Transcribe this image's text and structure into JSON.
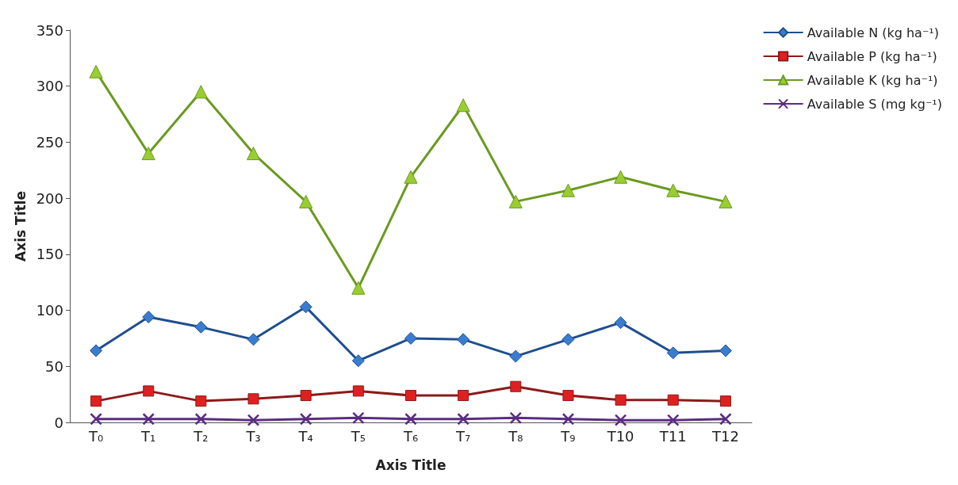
{
  "chart_data": {
    "type": "line",
    "xlabel": "Axis Title",
    "ylabel": "Axis Title",
    "categories": [
      "T₀",
      "T₁",
      "T₂",
      "T₃",
      "T₄",
      "T₅",
      "T₆",
      "T₇",
      "T₈",
      "T₉",
      "T10",
      "T11",
      "T12"
    ],
    "series": [
      {
        "name": "Available N (kg ha⁻¹)",
        "color": "#1f4e8c",
        "marker": "diamond",
        "values": [
          64,
          94,
          85,
          74,
          103,
          55,
          75,
          74,
          59,
          74,
          89,
          62,
          64
        ]
      },
      {
        "name": "Available P (kg ha⁻¹)",
        "color": "#8b1a1a",
        "marker": "square",
        "values": [
          19,
          28,
          19,
          21,
          24,
          28,
          24,
          24,
          32,
          24,
          20,
          20,
          19
        ]
      },
      {
        "name": "Available K (kg ha⁻¹)",
        "color": "#6a9a1f",
        "marker": "triangle",
        "values": [
          313,
          240,
          295,
          240,
          197,
          120,
          219,
          283,
          197,
          207,
          219,
          207,
          197
        ]
      },
      {
        "name": "Available S (mg kg⁻¹)",
        "color": "#5b2c82",
        "marker": "cross",
        "values": [
          3,
          3,
          3,
          2,
          3,
          4,
          3,
          3,
          4,
          3,
          2,
          2,
          3
        ]
      }
    ],
    "ylim": [
      0,
      350
    ],
    "yticks": [
      0,
      50,
      100,
      150,
      200,
      250,
      300,
      350
    ],
    "grid": false,
    "legend": "top right"
  }
}
